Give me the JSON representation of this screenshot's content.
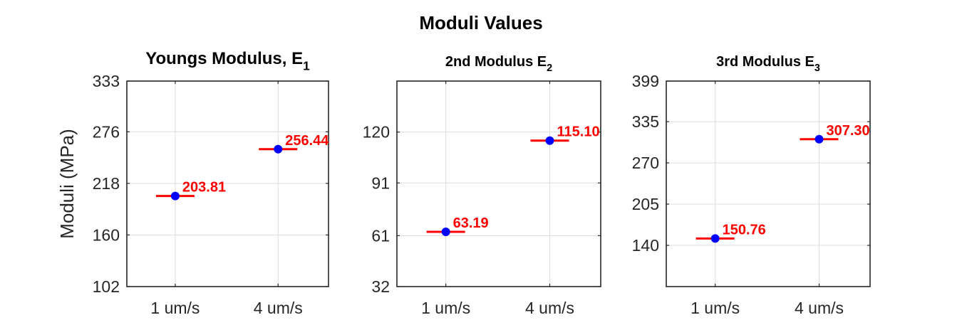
{
  "figure": {
    "title": "Moduli Values"
  },
  "chart_data": [
    {
      "type": "scatter",
      "title": "Youngs Modulus, E",
      "title_sub": "1",
      "ylabel": "Moduli (MPa)",
      "categories": [
        "1 um/s",
        "4 um/s"
      ],
      "values": [
        203.81,
        256.44
      ],
      "labels": [
        "203.81",
        "256.44"
      ],
      "ylim": [
        102,
        333
      ],
      "yticks": [
        102,
        160,
        218,
        276,
        333
      ],
      "grid": true,
      "colors": {
        "marker": "#0000ff",
        "errorbar": "#ff0000",
        "label": "#ff0000"
      }
    },
    {
      "type": "scatter",
      "title": "2nd Modulus E",
      "title_sub": "2",
      "ylabel": "",
      "categories": [
        "1 um/s",
        "4 um/s"
      ],
      "values": [
        63.19,
        115.1
      ],
      "labels": [
        "63.19",
        "115.10"
      ],
      "ylim": [
        32,
        149
      ],
      "yticks": [
        32,
        61,
        91,
        120
      ],
      "grid": true,
      "colors": {
        "marker": "#0000ff",
        "errorbar": "#ff0000",
        "label": "#ff0000"
      }
    },
    {
      "type": "scatter",
      "title": "3rd Modulus E",
      "title_sub": "3",
      "ylabel": "",
      "categories": [
        "1 um/s",
        "4 um/s"
      ],
      "values": [
        150.76,
        307.3
      ],
      "labels": [
        "150.76",
        "307.30"
      ],
      "ylim": [
        75,
        399
      ],
      "yticks": [
        140,
        205,
        270,
        335,
        399
      ],
      "grid": true,
      "colors": {
        "marker": "#0000ff",
        "errorbar": "#ff0000",
        "label": "#ff0000"
      }
    }
  ]
}
